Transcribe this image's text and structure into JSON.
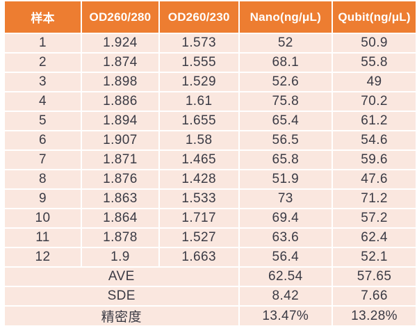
{
  "chart_data": {
    "type": "table",
    "title": "",
    "columns": [
      "样本",
      "OD260/280",
      "OD260/230",
      "Nano(ng/μL)",
      "Qubit(ng/μL)"
    ],
    "rows": [
      [
        "1",
        "1.924",
        "1.573",
        "52",
        "50.9"
      ],
      [
        "2",
        "1.874",
        "1.555",
        "68.1",
        "55.8"
      ],
      [
        "3",
        "1.898",
        "1.529",
        "52.6",
        "49"
      ],
      [
        "4",
        "1.886",
        "1.61",
        "75.8",
        "70.2"
      ],
      [
        "5",
        "1.894",
        "1.655",
        "65.4",
        "61.2"
      ],
      [
        "6",
        "1.907",
        "1.58",
        "56.5",
        "54.6"
      ],
      [
        "7",
        "1.871",
        "1.465",
        "65.8",
        "59.6"
      ],
      [
        "8",
        "1.876",
        "1.428",
        "51.9",
        "47.6"
      ],
      [
        "9",
        "1.863",
        "1.533",
        "73",
        "71.2"
      ],
      [
        "10",
        "1.864",
        "1.717",
        "69.4",
        "57.2"
      ],
      [
        "11",
        "1.878",
        "1.527",
        "63.6",
        "62.4"
      ],
      [
        "12",
        "1.9",
        "1.663",
        "56.4",
        "52.1"
      ]
    ],
    "summary_rows": [
      {
        "label": "AVE",
        "nano": "62.54",
        "qubit": "57.65"
      },
      {
        "label": "SDE",
        "nano": "8.42",
        "qubit": "7.66"
      },
      {
        "label": "精密度",
        "nano": "13.47%",
        "qubit": "13.28%"
      }
    ]
  },
  "colors": {
    "header_bg": "#ED7D31",
    "header_text": "#FFFFFF",
    "row_bg": "#FAE7DF",
    "body_text": "#3A3A44",
    "separator": "#FFFFFF"
  }
}
